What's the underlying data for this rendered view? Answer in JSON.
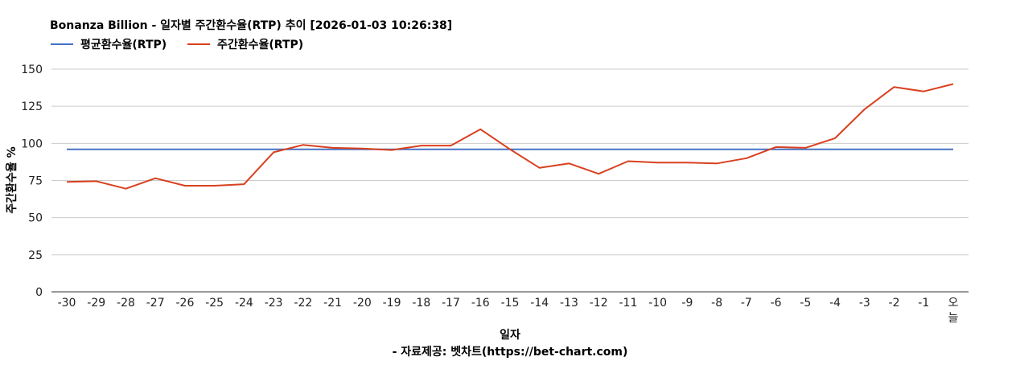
{
  "chart_data": {
    "type": "line",
    "title": "Bonanza Billion - 일자별 주간환수율(RTP) 추이 [2026-01-03 10:26:38]",
    "xlabel": "일자",
    "ylabel": "주간환수율 %",
    "source_note": "- 자료제공: 벳차트(https://bet-chart.com)",
    "categories": [
      "-30",
      "-29",
      "-28",
      "-27",
      "-26",
      "-25",
      "-24",
      "-23",
      "-22",
      "-21",
      "-20",
      "-19",
      "-18",
      "-17",
      "-16",
      "-15",
      "-14",
      "-13",
      "-12",
      "-11",
      "-10",
      "-9",
      "-8",
      "-7",
      "-6",
      "-5",
      "-4",
      "-3",
      "-2",
      "-1",
      "오늘"
    ],
    "ylim": [
      0,
      150
    ],
    "yticks": [
      0,
      25,
      50,
      75,
      100,
      125,
      150
    ],
    "grid": true,
    "legend_position": "top-left",
    "series": [
      {
        "name": "평균환수율(RTP)",
        "color": "#4472c4",
        "values": [
          96,
          96,
          96,
          96,
          96,
          96,
          96,
          96,
          96,
          96,
          96,
          96,
          96,
          96,
          96,
          96,
          96,
          96,
          96,
          96,
          96,
          96,
          96,
          96,
          96,
          96,
          96,
          96,
          96,
          96,
          96
        ]
      },
      {
        "name": "주간환수율(RTP)",
        "color": "#d9401f",
        "values": [
          74,
          74.5,
          69.5,
          76.5,
          71.5,
          71.5,
          72.5,
          94,
          99,
          97,
          96.5,
          95.5,
          98.5,
          98.5,
          109.5,
          96,
          83.5,
          86.5,
          79.5,
          88,
          87,
          87,
          86.5,
          90,
          97.5,
          97,
          103.5,
          123,
          138,
          135,
          140
        ]
      }
    ]
  }
}
